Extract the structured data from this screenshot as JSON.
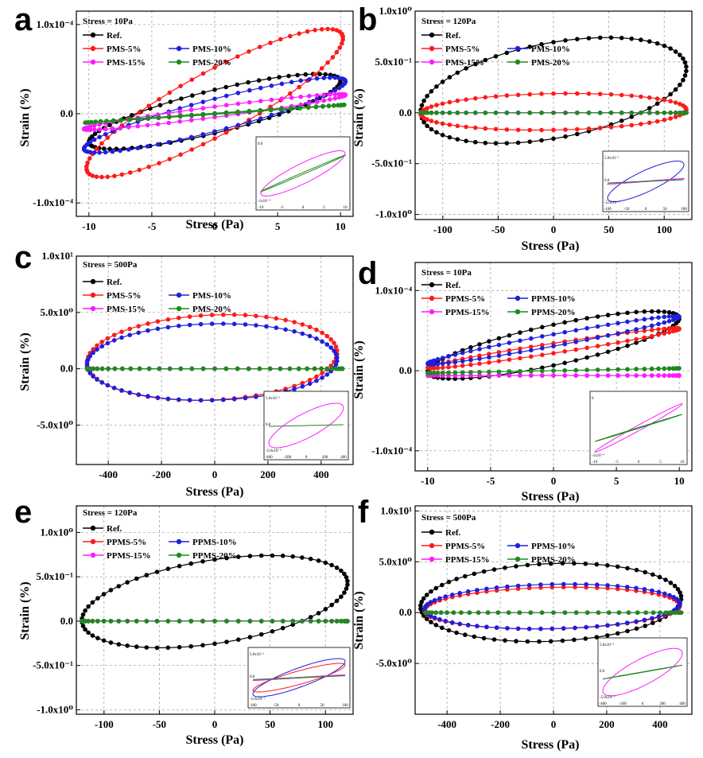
{
  "colors": {
    "Ref": "#000000",
    "s5": "#ff1a1a",
    "s10": "#1f1fdc",
    "s15": "#ff1aff",
    "s20": "#1e8a1e"
  },
  "chart_data": [
    {
      "panel": "a",
      "type": "line",
      "stress_label": "Stress = 10Pa",
      "xlabel": "Stress (Pa)",
      "ylabel": "Strain (%)",
      "xlim": [
        -11,
        11
      ],
      "ylim": [
        -1.15,
        1.15
      ],
      "xticks": [
        -10,
        -5,
        0,
        5,
        10
      ],
      "yticks": [
        {
          "v": 1,
          "label": "1.0x10⁻⁴"
        },
        {
          "v": 0,
          "label": "0.0"
        },
        {
          "v": -1,
          "label": "-1.0x10⁻⁴"
        }
      ],
      "series": [
        {
          "name": "Ref.",
          "key": "Ref",
          "amp": 10,
          "cx": 0,
          "a": 0.42,
          "b": 0.025,
          "ph": 0.62
        },
        {
          "name": "PMS-5%",
          "key": "s5",
          "amp": 10.2,
          "cx": 0,
          "a": 0.83,
          "b": 0.12,
          "ph": 0.5
        },
        {
          "name": "PMS-10%",
          "key": "s10",
          "amp": 10.4,
          "cx": 0,
          "a": 0.42,
          "b": -0.015,
          "ph": 0.45
        },
        {
          "name": "PMS-15%",
          "key": "s15",
          "amp": 10.4,
          "cx": 0,
          "a": 0.2,
          "b": 0.02,
          "ph": 0.3
        },
        {
          "name": "PMS-20%",
          "key": "s20",
          "amp": 10.3,
          "cx": 0,
          "a": 0.1,
          "b": 0.0,
          "ph": 0.05
        }
      ],
      "inset": {
        "xticks": [
          "-10",
          "-5",
          "0",
          "5",
          "10"
        ],
        "yticks": [
          "0.0",
          "-1x10⁻⁴"
        ],
        "series": [
          {
            "key": "s15",
            "amp": 10,
            "a": 0.75,
            "ph": 0.5
          },
          {
            "key": "s20",
            "amp": 10,
            "a": 0.6,
            "ph": 0.05
          }
        ]
      }
    },
    {
      "panel": "b",
      "type": "line",
      "stress_label": "Stress = 120Pa",
      "xlabel": "Stress (Pa)",
      "ylabel": "Strain (%)",
      "xlim": [
        -125,
        125
      ],
      "ylim": [
        -1.05,
        1.0
      ],
      "xticks": [
        -100,
        -50,
        0,
        50,
        100
      ],
      "yticks": [
        {
          "v": 1,
          "label": "1.0x10⁰"
        },
        {
          "v": 0.5,
          "label": "5.0x10⁻¹"
        },
        {
          "v": 0,
          "label": "0.0"
        },
        {
          "v": -0.5,
          "label": "-5.0x10⁻¹"
        },
        {
          "v": -1,
          "label": "-1.0x10⁰"
        }
      ],
      "series": [
        {
          "name": "Ref.",
          "key": "Ref",
          "amp": 120,
          "cx": 0,
          "a": 0.52,
          "b": 0.22,
          "ph": 1.15
        },
        {
          "name": "PMS-5%",
          "key": "s5",
          "amp": 120,
          "cx": 0,
          "a": 0.18,
          "b": 0.01,
          "ph": 1.45
        },
        {
          "name": "PMS-10%",
          "key": "s10",
          "amp": 120,
          "cx": 0,
          "a": 0.0,
          "b": 0.0,
          "ph": 0
        },
        {
          "name": "PMS-15%",
          "key": "s15",
          "amp": 120,
          "cx": 0,
          "a": 0.0,
          "b": 0.0,
          "ph": 0
        },
        {
          "name": "PMS-20%",
          "key": "s20",
          "amp": 120,
          "cx": 0,
          "a": 0.0,
          "b": 0.0,
          "ph": 0
        }
      ],
      "inset": {
        "xticks": [
          "-100",
          "-50",
          "0",
          "50",
          "100"
        ],
        "yticks": [
          "5.0x10⁻²",
          "0.0",
          "-5.0x10⁻²"
        ],
        "series": [
          {
            "key": "s10",
            "amp": 100,
            "a": 0.85,
            "ph": 0.6
          },
          {
            "key": "s15",
            "amp": 100,
            "a": 0.12,
            "ph": 0.1
          },
          {
            "key": "s20",
            "amp": 100,
            "a": 0.07,
            "ph": 0.05
          }
        ]
      }
    },
    {
      "panel": "c",
      "type": "line",
      "stress_label": "Stress = 500Pa",
      "xlabel": "Stress (Pa)",
      "ylabel": "Strain (%)",
      "xlim": [
        -520,
        520
      ],
      "ylim": [
        -8.5,
        10
      ],
      "xticks": [
        -400,
        -200,
        0,
        200,
        400
      ],
      "yticks": [
        {
          "v": 10,
          "label": "1.0x10¹"
        },
        {
          "v": 5,
          "label": "5.0x10⁰"
        },
        {
          "v": 0,
          "label": "0.0"
        },
        {
          "v": -5,
          "label": "-5.0x10⁰"
        }
      ],
      "series": [
        {
          "name": "Ref.",
          "key": "Ref",
          "amp": 480,
          "cx": 0,
          "a": 0.0,
          "b": 0.0,
          "ph": 0
        },
        {
          "name": "PMS-5%",
          "key": "s5",
          "amp": 470,
          "cx": -10,
          "a": 3.8,
          "b": 1.0,
          "ph": 1.45
        },
        {
          "name": "PMS-10%",
          "key": "s10",
          "amp": 470,
          "cx": -10,
          "a": 3.4,
          "b": 0.6,
          "ph": 1.5
        },
        {
          "name": "PMS-15%",
          "key": "s15",
          "amp": 480,
          "cx": 0,
          "a": 0.0,
          "b": 0.0,
          "ph": 0
        },
        {
          "name": "PMS-20%",
          "key": "s20",
          "amp": 480,
          "cx": 0,
          "a": 0.0,
          "b": 0.0,
          "ph": 0
        }
      ],
      "inset": {
        "xticks": [
          "-400",
          "-200",
          "0",
          "200",
          "400"
        ],
        "yticks": [
          "5.0x10⁻³",
          "0.0",
          "-5.0x10⁻³"
        ],
        "series": [
          {
            "key": "s15",
            "amp": 400,
            "a": 0.8,
            "ph": 0.65
          },
          {
            "key": "s20",
            "amp": 400,
            "a": 0.03,
            "ph": 0.0
          }
        ]
      }
    },
    {
      "panel": "d",
      "type": "line",
      "stress_label": "Stress = 10Pa",
      "xlabel": "Stress (Pa)",
      "ylabel": "Strain (%)",
      "xlim": [
        -11,
        11
      ],
      "ylim": [
        -1.25,
        1.35
      ],
      "xticks": [
        -10,
        -5,
        0,
        5,
        10
      ],
      "yticks": [
        {
          "v": 1,
          "label": "1.0x10⁻⁴"
        },
        {
          "v": 0,
          "label": "0.0"
        },
        {
          "v": -1,
          "label": "-1.0x10⁻⁴"
        }
      ],
      "series": [
        {
          "name": "Ref.",
          "key": "Ref",
          "amp": 10,
          "cx": 0,
          "a": 0.42,
          "b": 0.32,
          "ph": 0.65
        },
        {
          "name": "PPMS-5%",
          "key": "s5",
          "amp": 10,
          "cx": 0,
          "a": 0.25,
          "b": 0.28,
          "ph": 0.25
        },
        {
          "name": "PPMS-10%",
          "key": "s10",
          "amp": 10,
          "cx": 0,
          "a": 0.3,
          "b": 0.38,
          "ph": 0.25
        },
        {
          "name": "PPMS-15%",
          "key": "s15",
          "amp": 10,
          "cx": 0,
          "a": 0.0,
          "b": -0.06,
          "ph": 0
        },
        {
          "name": "PPMS-20%",
          "key": "s20",
          "amp": 10,
          "cx": 0,
          "a": 0.03,
          "b": 0.0,
          "ph": 0
        }
      ],
      "inset": {
        "xticks": [
          "-10",
          "-5",
          "0",
          "5",
          "10"
        ],
        "yticks": [
          "0",
          "-1x10⁻⁴"
        ],
        "series": [
          {
            "key": "s15",
            "amp": 10,
            "a": 0.8,
            "ph": 0.12
          },
          {
            "key": "s20",
            "amp": 10,
            "a": 0.45,
            "ph": 0.03
          }
        ]
      }
    },
    {
      "panel": "e",
      "type": "line",
      "stress_label": "Stress = 120Pa",
      "xlabel": "Stress (Pa)",
      "ylabel": "Strain (%)",
      "xlim": [
        -125,
        125
      ],
      "ylim": [
        -1.05,
        1.3
      ],
      "xticks": [
        -100,
        -50,
        0,
        50,
        100
      ],
      "yticks": [
        {
          "v": 1,
          "label": "1.0x10⁰"
        },
        {
          "v": 0.5,
          "label": "5.0x10⁻¹"
        },
        {
          "v": 0,
          "label": "0.0"
        },
        {
          "v": -0.5,
          "label": "-5.0x10⁻¹"
        },
        {
          "v": -1,
          "label": "-1.0x10⁰"
        }
      ],
      "series": [
        {
          "name": "Ref.",
          "key": "Ref",
          "amp": 120,
          "cx": 0,
          "a": 0.52,
          "b": 0.22,
          "ph": 1.15
        },
        {
          "name": "PPMS-5%",
          "key": "s5",
          "amp": 120,
          "cx": 0,
          "a": 0.0,
          "b": 0.0,
          "ph": 0
        },
        {
          "name": "PPMS-10%",
          "key": "s10",
          "amp": 120,
          "cx": 0,
          "a": 0.0,
          "b": 0.0,
          "ph": 0
        },
        {
          "name": "PPMS-15%",
          "key": "s15",
          "amp": 120,
          "cx": 0,
          "a": 0.0,
          "b": 0.0,
          "ph": 0
        },
        {
          "name": "PPMS-20%",
          "key": "s20",
          "amp": 120,
          "cx": 0,
          "a": 0.0,
          "b": 0.0,
          "ph": 0
        }
      ],
      "inset": {
        "xticks": [
          "-100",
          "-50",
          "0",
          "50",
          "100"
        ],
        "yticks": [
          "5.0x10⁻²",
          "0.0",
          "-5.0x10⁻²"
        ],
        "series": [
          {
            "key": "s5",
            "amp": 100,
            "a": 0.6,
            "ph": 0.5
          },
          {
            "key": "s10",
            "amp": 100,
            "a": 0.8,
            "ph": 0.55
          },
          {
            "key": "s15",
            "amp": 100,
            "a": 0.12,
            "ph": 0.1
          },
          {
            "key": "s20",
            "amp": 100,
            "a": 0.08,
            "ph": 0.05
          }
        ]
      }
    },
    {
      "panel": "f",
      "type": "line",
      "stress_label": "Stress = 500Pa",
      "xlabel": "Stress (Pa)",
      "ylabel": "Strain (%)",
      "xlim": [
        -520,
        520
      ],
      "ylim": [
        -10,
        10.5
      ],
      "xticks": [
        -400,
        -200,
        0,
        200,
        400
      ],
      "yticks": [
        {
          "v": 10,
          "label": "1.0x10¹"
        },
        {
          "v": 5,
          "label": "5.0x10⁰"
        },
        {
          "v": 0,
          "label": "0.0"
        },
        {
          "v": -5,
          "label": "-5.0x10⁰"
        }
      ],
      "series": [
        {
          "name": "Ref.",
          "key": "Ref",
          "amp": 490,
          "cx": -10,
          "a": 3.85,
          "b": 1.0,
          "ph": 1.45
        },
        {
          "name": "PPMS-5%",
          "key": "s5",
          "amp": 480,
          "cx": -5,
          "a": 2.05,
          "b": 0.45,
          "ph": 1.45
        },
        {
          "name": "PPMS-10%",
          "key": "s10",
          "amp": 480,
          "cx": -5,
          "a": 2.2,
          "b": 0.6,
          "ph": 1.45
        },
        {
          "name": "PPMS-15%",
          "key": "s15",
          "amp": 480,
          "cx": 0,
          "a": 0.0,
          "b": 0.0,
          "ph": 0
        },
        {
          "name": "PPMS-20%",
          "key": "s20",
          "amp": 480,
          "cx": 0,
          "a": 0.0,
          "b": 0.0,
          "ph": 0
        }
      ],
      "inset": {
        "xticks": [
          "-400",
          "-200",
          "0",
          "200",
          "400"
        ],
        "yticks": [
          "5.0x10⁻³",
          "0.0",
          "-5.0x10⁻³"
        ],
        "series": [
          {
            "key": "s15",
            "amp": 400,
            "a": 0.85,
            "ph": 0.65
          },
          {
            "key": "s20",
            "amp": 400,
            "a": 0.25,
            "ph": 0.03
          }
        ]
      }
    }
  ]
}
